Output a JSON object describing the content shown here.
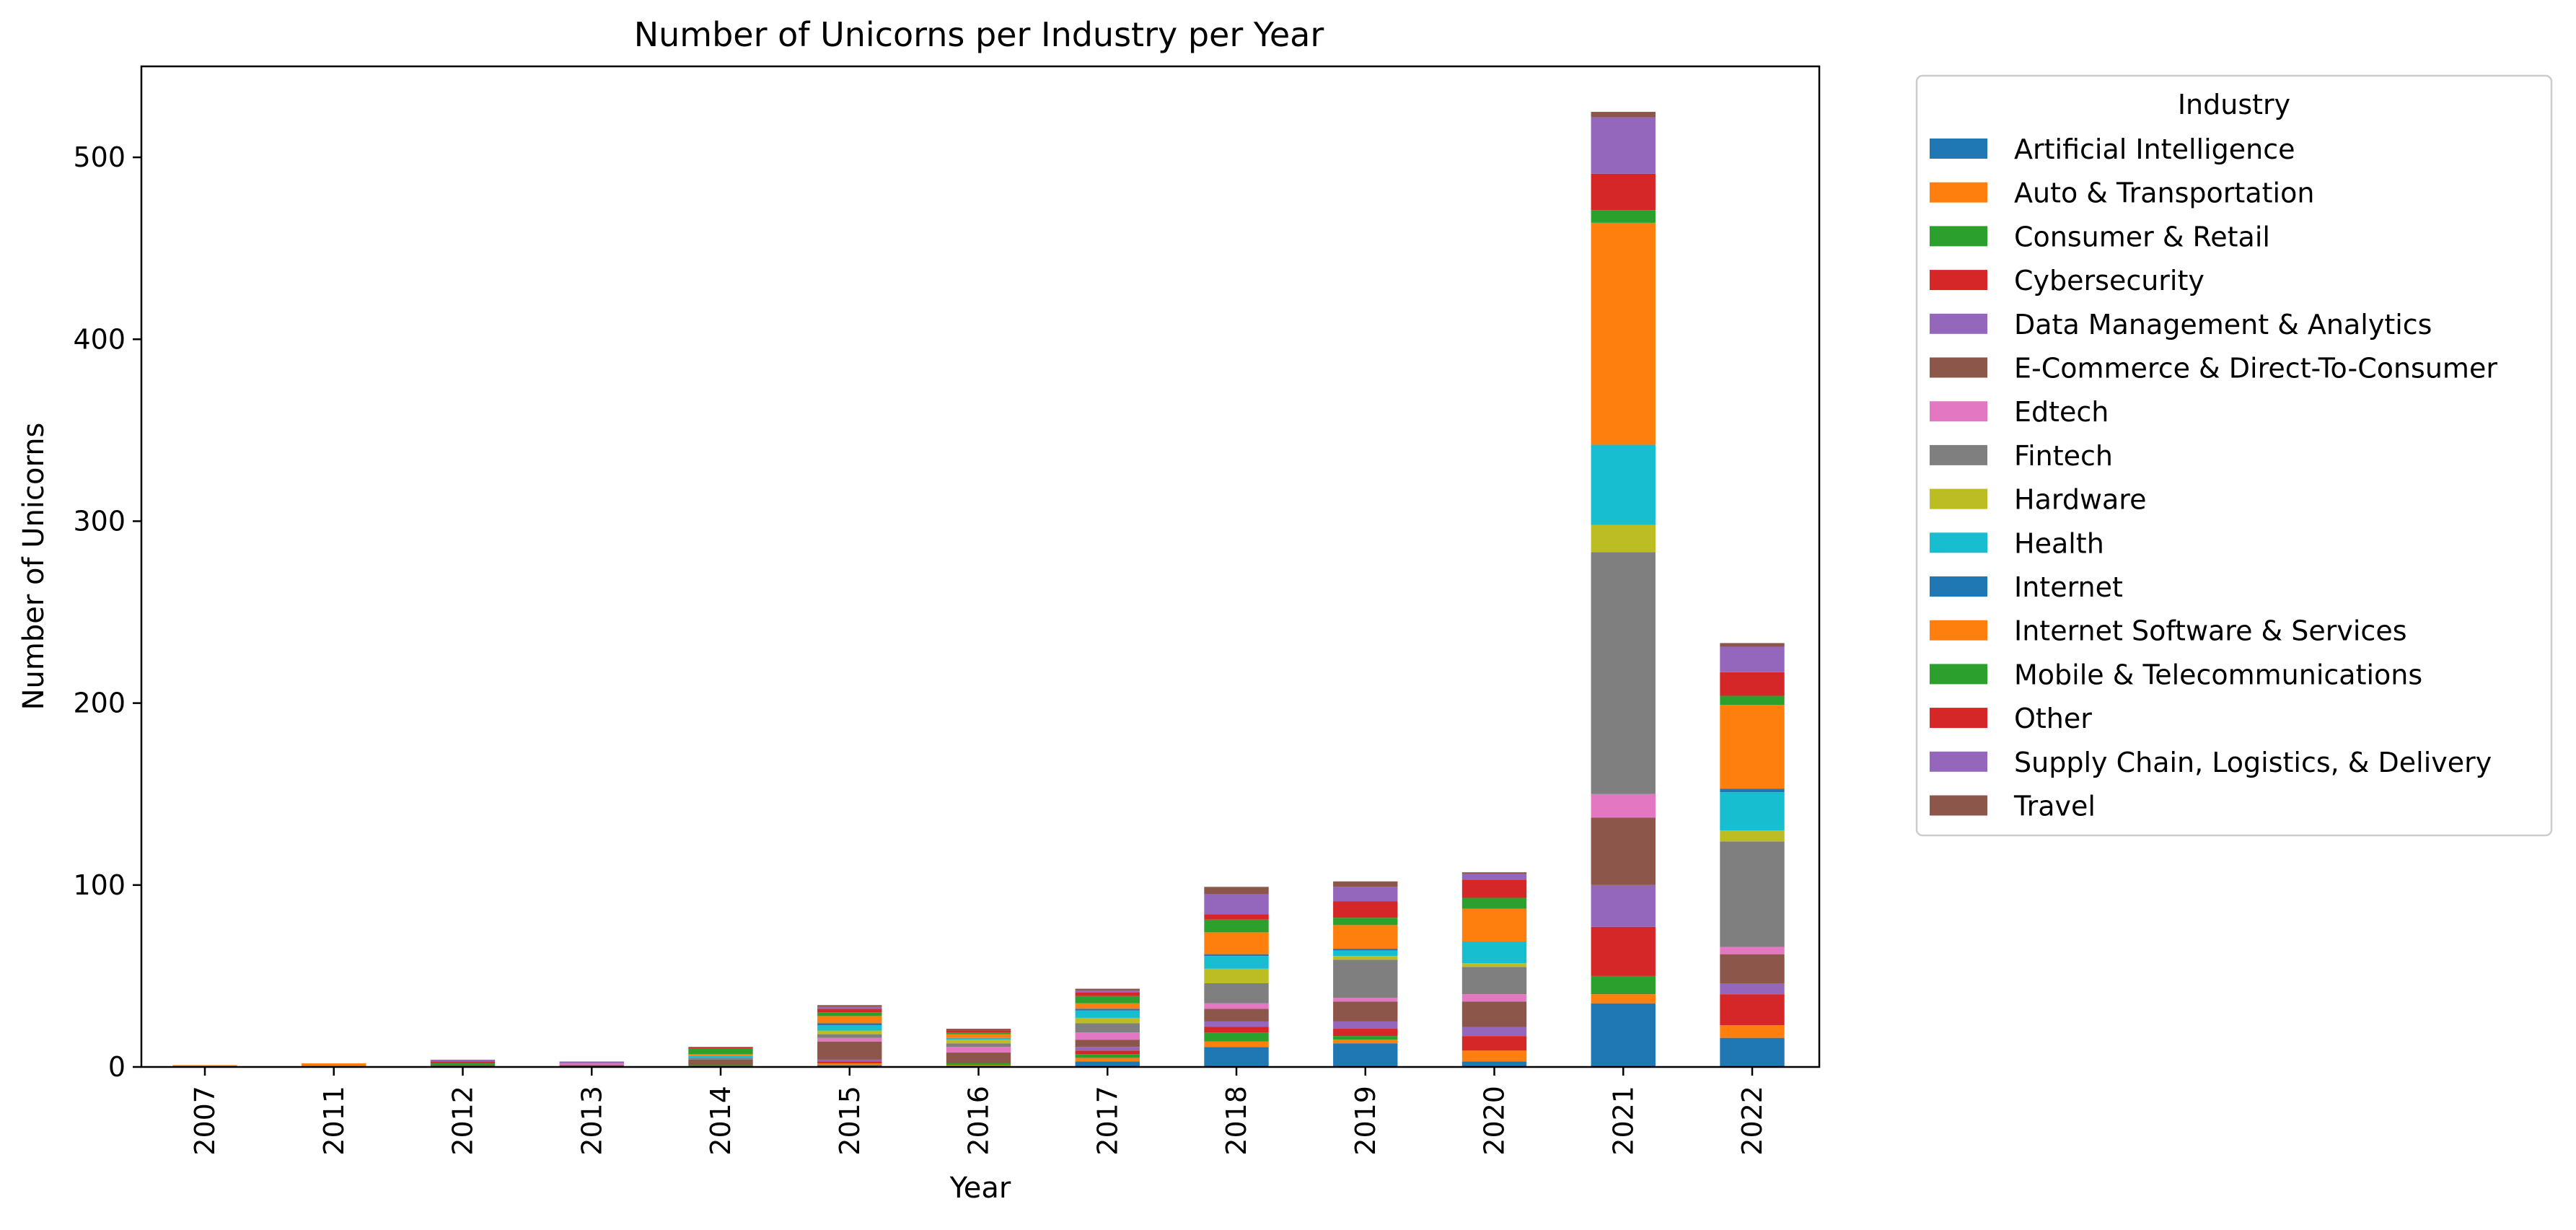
{
  "chart_data": {
    "type": "bar",
    "stacked": true,
    "title": "Number of Unicorns per Industry per Year",
    "xlabel": "Year",
    "ylabel": "Number of Unicorns",
    "ylim": [
      0,
      550
    ],
    "yticks": [
      0,
      100,
      200,
      300,
      400,
      500
    ],
    "grid": false,
    "legend": {
      "title": "Industry",
      "placement": "outside-right"
    },
    "categories": [
      "2007",
      "2011",
      "2012",
      "2013",
      "2014",
      "2015",
      "2016",
      "2017",
      "2018",
      "2019",
      "2020",
      "2021",
      "2022"
    ],
    "series": [
      {
        "name": "Artificial Intelligence",
        "color": "#1f77b4",
        "values": [
          0,
          0,
          0,
          0,
          0,
          1,
          0,
          3,
          11,
          13,
          3,
          35,
          16
        ]
      },
      {
        "name": "Auto & Transportation",
        "color": "#ff7f0e",
        "values": [
          0,
          0,
          0,
          0,
          0,
          1,
          1,
          2,
          3,
          2,
          6,
          5,
          7
        ]
      },
      {
        "name": "Consumer & Retail",
        "color": "#2ca02c",
        "values": [
          0,
          0,
          0,
          0,
          1,
          0,
          1,
          2,
          5,
          2,
          0,
          10,
          0
        ]
      },
      {
        "name": "Cybersecurity",
        "color": "#d62728",
        "values": [
          0,
          0,
          0,
          0,
          0,
          1,
          0,
          2,
          3,
          4,
          8,
          27,
          17
        ]
      },
      {
        "name": "Data Management & Analytics",
        "color": "#9467bd",
        "values": [
          0,
          0,
          0,
          0,
          0,
          1,
          0,
          2,
          3,
          4,
          5,
          23,
          6
        ]
      },
      {
        "name": "E-Commerce & Direct-To-Consumer",
        "color": "#8c564b",
        "values": [
          0,
          0,
          1,
          1,
          3,
          10,
          6,
          4,
          7,
          11,
          14,
          37,
          16
        ]
      },
      {
        "name": "Edtech",
        "color": "#e377c2",
        "values": [
          0,
          0,
          0,
          1,
          0,
          2,
          3,
          4,
          3,
          2,
          4,
          13,
          4
        ]
      },
      {
        "name": "Fintech",
        "color": "#7f7f7f",
        "values": [
          0,
          0,
          0,
          0,
          1,
          2,
          2,
          5,
          11,
          21,
          15,
          133,
          58
        ]
      },
      {
        "name": "Hardware",
        "color": "#bcbd22",
        "values": [
          0,
          0,
          0,
          0,
          0,
          2,
          2,
          3,
          8,
          2,
          2,
          15,
          6
        ]
      },
      {
        "name": "Health",
        "color": "#17becf",
        "values": [
          0,
          0,
          0,
          0,
          1,
          3,
          1,
          4,
          7,
          3,
          12,
          44,
          21
        ]
      },
      {
        "name": "Internet",
        "color": "#1f77b4",
        "values": [
          0,
          0,
          0,
          0,
          0,
          1,
          0,
          1,
          1,
          1,
          0,
          0,
          2
        ]
      },
      {
        "name": "Internet Software & Services",
        "color": "#ff7f0e",
        "values": [
          1,
          2,
          0,
          0,
          1,
          4,
          2,
          3,
          12,
          13,
          18,
          122,
          46
        ]
      },
      {
        "name": "Mobile & Telecommunications",
        "color": "#2ca02c",
        "values": [
          0,
          0,
          1,
          0,
          3,
          2,
          1,
          4,
          7,
          4,
          6,
          7,
          5
        ]
      },
      {
        "name": "Other",
        "color": "#d62728",
        "values": [
          0,
          0,
          1,
          0,
          1,
          2,
          1,
          2,
          3,
          9,
          10,
          20,
          13
        ]
      },
      {
        "name": "Supply Chain, Logistics, & Delivery",
        "color": "#9467bd",
        "values": [
          0,
          0,
          1,
          1,
          0,
          1,
          0,
          1,
          11,
          8,
          3,
          31,
          14
        ]
      },
      {
        "name": "Travel",
        "color": "#8c564b",
        "values": [
          0,
          0,
          0,
          0,
          0,
          1,
          1,
          1,
          4,
          3,
          1,
          3,
          2
        ]
      }
    ]
  }
}
